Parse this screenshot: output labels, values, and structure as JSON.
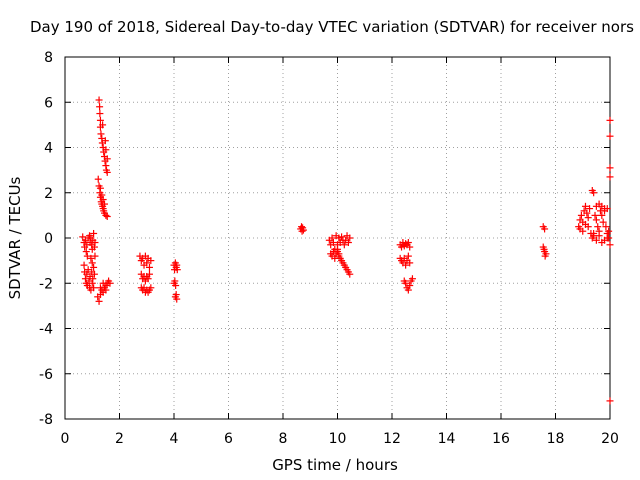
{
  "chart_data": {
    "type": "scatter",
    "title": "Day 190 of 2018, Sidereal Day-to-day VTEC variation (SDTVAR) for receiver nors",
    "xlabel": "GPS time / hours",
    "ylabel": "SDTVAR / TECUs",
    "xlim": [
      0,
      20
    ],
    "ylim": [
      -8,
      8
    ],
    "xticks": [
      0,
      2,
      4,
      6,
      8,
      10,
      12,
      14,
      16,
      18,
      20
    ],
    "yticks": [
      -8,
      -6,
      -4,
      -2,
      0,
      2,
      4,
      6,
      8
    ],
    "grid": true,
    "marker": "plus",
    "color": "#ff0000",
    "series": [
      {
        "name": "nors",
        "points": [
          [
            0.65,
            0.05
          ],
          [
            0.7,
            -0.2
          ],
          [
            0.72,
            -0.4
          ],
          [
            0.75,
            -0.1
          ],
          [
            0.78,
            -0.6
          ],
          [
            0.8,
            -0.3
          ],
          [
            0.82,
            -0.8
          ],
          [
            0.85,
            0.0
          ],
          [
            0.7,
            -1.2
          ],
          [
            0.72,
            -1.5
          ],
          [
            0.75,
            -1.8
          ],
          [
            0.78,
            -2.0
          ],
          [
            0.8,
            -1.6
          ],
          [
            0.82,
            -2.1
          ],
          [
            0.85,
            -1.4
          ],
          [
            0.88,
            -1.9
          ],
          [
            0.9,
            -2.2
          ],
          [
            0.92,
            -1.7
          ],
          [
            0.95,
            -2.3
          ],
          [
            0.98,
            -1.5
          ],
          [
            1.0,
            -2.0
          ],
          [
            1.02,
            -1.8
          ],
          [
            1.05,
            -2.2
          ],
          [
            1.08,
            -1.6
          ],
          [
            0.9,
            0.1
          ],
          [
            0.92,
            -0.2
          ],
          [
            0.95,
            0.0
          ],
          [
            0.98,
            -0.3
          ],
          [
            1.0,
            -0.5
          ],
          [
            1.02,
            -0.1
          ],
          [
            1.05,
            0.2
          ],
          [
            1.08,
            -0.4
          ],
          [
            1.1,
            -0.2
          ],
          [
            0.95,
            -0.9
          ],
          [
            1.0,
            -1.1
          ],
          [
            1.05,
            -1.3
          ],
          [
            1.1,
            -0.8
          ],
          [
            1.2,
            -2.6
          ],
          [
            1.25,
            -2.8
          ],
          [
            1.3,
            -2.5
          ],
          [
            1.35,
            -2.3
          ],
          [
            1.4,
            -2.4
          ],
          [
            1.45,
            -2.2
          ],
          [
            1.5,
            -2.1
          ],
          [
            1.55,
            -2.0
          ],
          [
            1.6,
            -1.9
          ],
          [
            1.65,
            -2.0
          ],
          [
            1.3,
            -2.2
          ],
          [
            1.4,
            -2.0
          ],
          [
            1.5,
            -2.3
          ],
          [
            1.25,
            6.1
          ],
          [
            1.27,
            5.8
          ],
          [
            1.28,
            5.5
          ],
          [
            1.3,
            5.2
          ],
          [
            1.3,
            4.9
          ],
          [
            1.32,
            4.6
          ],
          [
            1.35,
            4.4
          ],
          [
            1.37,
            4.2
          ],
          [
            1.38,
            5.0
          ],
          [
            1.4,
            4.0
          ],
          [
            1.42,
            3.8
          ],
          [
            1.45,
            3.6
          ],
          [
            1.47,
            3.4
          ],
          [
            1.48,
            4.3
          ],
          [
            1.5,
            3.2
          ],
          [
            1.52,
            3.0
          ],
          [
            1.55,
            2.9
          ],
          [
            1.5,
            3.9
          ],
          [
            1.55,
            3.5
          ],
          [
            1.22,
            2.6
          ],
          [
            1.25,
            2.3
          ],
          [
            1.28,
            2.0
          ],
          [
            1.3,
            1.8
          ],
          [
            1.33,
            1.6
          ],
          [
            1.35,
            1.5
          ],
          [
            1.38,
            1.4
          ],
          [
            1.4,
            1.3
          ],
          [
            1.42,
            1.2
          ],
          [
            1.45,
            1.1
          ],
          [
            1.5,
            1.0
          ],
          [
            1.55,
            0.95
          ],
          [
            1.3,
            2.2
          ],
          [
            1.35,
            1.9
          ],
          [
            1.4,
            1.7
          ],
          [
            1.45,
            1.5
          ],
          [
            2.75,
            -0.8
          ],
          [
            2.8,
            -1.0
          ],
          [
            2.85,
            -0.9
          ],
          [
            2.9,
            -1.2
          ],
          [
            2.95,
            -0.8
          ],
          [
            3.0,
            -1.1
          ],
          [
            3.05,
            -0.9
          ],
          [
            3.1,
            -1.3
          ],
          [
            3.15,
            -1.0
          ],
          [
            2.8,
            -1.6
          ],
          [
            2.85,
            -1.8
          ],
          [
            2.9,
            -1.7
          ],
          [
            2.95,
            -1.9
          ],
          [
            3.0,
            -1.7
          ],
          [
            3.05,
            -1.8
          ],
          [
            3.1,
            -1.6
          ],
          [
            2.8,
            -2.2
          ],
          [
            2.85,
            -2.3
          ],
          [
            2.9,
            -2.2
          ],
          [
            2.95,
            -2.4
          ],
          [
            3.0,
            -2.3
          ],
          [
            3.05,
            -2.4
          ],
          [
            3.1,
            -2.3
          ],
          [
            3.15,
            -2.2
          ],
          [
            4.0,
            -1.2
          ],
          [
            4.02,
            -1.4
          ],
          [
            4.05,
            -1.1
          ],
          [
            4.08,
            -1.3
          ],
          [
            4.1,
            -1.2
          ],
          [
            4.12,
            -1.4
          ],
          [
            4.0,
            -2.0
          ],
          [
            4.03,
            -1.9
          ],
          [
            4.06,
            -2.1
          ],
          [
            4.05,
            -2.6
          ],
          [
            4.08,
            -2.5
          ],
          [
            4.1,
            -2.7
          ],
          [
            8.65,
            0.4
          ],
          [
            8.68,
            0.5
          ],
          [
            8.7,
            0.3
          ],
          [
            8.72,
            0.45
          ],
          [
            8.75,
            0.35
          ],
          [
            9.7,
            -0.1
          ],
          [
            9.75,
            -0.3
          ],
          [
            9.8,
            0.0
          ],
          [
            9.85,
            -0.2
          ],
          [
            9.9,
            -0.5
          ],
          [
            9.95,
            0.1
          ],
          [
            10.0,
            -0.3
          ],
          [
            10.05,
            0.0
          ],
          [
            10.1,
            -0.2
          ],
          [
            10.15,
            0.05
          ],
          [
            10.2,
            -0.1
          ],
          [
            10.25,
            -0.3
          ],
          [
            10.3,
            -0.1
          ],
          [
            10.35,
            0.1
          ],
          [
            10.4,
            -0.2
          ],
          [
            10.45,
            0.0
          ],
          [
            9.75,
            -0.7
          ],
          [
            9.8,
            -0.8
          ],
          [
            9.85,
            -0.6
          ],
          [
            9.9,
            -0.9
          ],
          [
            9.95,
            -0.7
          ],
          [
            10.0,
            -0.5
          ],
          [
            10.05,
            -0.7
          ],
          [
            10.0,
            -0.6
          ],
          [
            10.05,
            -0.8
          ],
          [
            10.1,
            -0.9
          ],
          [
            10.15,
            -1.0
          ],
          [
            10.2,
            -1.1
          ],
          [
            10.25,
            -1.2
          ],
          [
            10.3,
            -1.3
          ],
          [
            10.35,
            -1.4
          ],
          [
            10.4,
            -1.5
          ],
          [
            10.45,
            -1.6
          ],
          [
            12.3,
            -0.3
          ],
          [
            12.35,
            -0.4
          ],
          [
            12.4,
            -0.2
          ],
          [
            12.45,
            -0.35
          ],
          [
            12.5,
            -0.25
          ],
          [
            12.55,
            -0.3
          ],
          [
            12.6,
            -0.2
          ],
          [
            12.65,
            -0.4
          ],
          [
            12.3,
            -0.9
          ],
          [
            12.35,
            -1.0
          ],
          [
            12.4,
            -1.1
          ],
          [
            12.45,
            -0.9
          ],
          [
            12.5,
            -1.2
          ],
          [
            12.55,
            -1.0
          ],
          [
            12.6,
            -0.8
          ],
          [
            12.65,
            -1.1
          ],
          [
            12.45,
            -1.9
          ],
          [
            12.5,
            -2.0
          ],
          [
            12.55,
            -2.2
          ],
          [
            12.6,
            -2.3
          ],
          [
            12.65,
            -2.1
          ],
          [
            12.7,
            -1.9
          ],
          [
            12.75,
            -1.8
          ],
          [
            17.55,
            0.5
          ],
          [
            17.6,
            0.4
          ],
          [
            17.55,
            -0.4
          ],
          [
            17.58,
            -0.5
          ],
          [
            17.6,
            -0.6
          ],
          [
            17.62,
            -0.8
          ],
          [
            17.65,
            -0.7
          ],
          [
            18.85,
            0.5
          ],
          [
            18.9,
            0.8
          ],
          [
            18.95,
            1.0
          ],
          [
            19.0,
            0.7
          ],
          [
            19.05,
            1.2
          ],
          [
            19.1,
            1.4
          ],
          [
            19.15,
            1.1
          ],
          [
            19.2,
            0.9
          ],
          [
            19.25,
            1.3
          ],
          [
            18.9,
            0.4
          ],
          [
            19.0,
            0.3
          ],
          [
            19.1,
            0.6
          ],
          [
            19.2,
            0.5
          ],
          [
            19.3,
            0.2
          ],
          [
            19.35,
            0.0
          ],
          [
            19.4,
            0.1
          ],
          [
            19.35,
            2.1
          ],
          [
            19.4,
            2.0
          ],
          [
            19.45,
            1.0
          ],
          [
            19.5,
            0.8
          ],
          [
            19.55,
            0.5
          ],
          [
            19.6,
            0.3
          ],
          [
            19.65,
            1.2
          ],
          [
            19.7,
            1.0
          ],
          [
            19.75,
            0.7
          ],
          [
            19.8,
            1.3
          ],
          [
            19.85,
            0.5
          ],
          [
            19.9,
            0.2
          ],
          [
            19.95,
            0.0
          ],
          [
            19.5,
            1.4
          ],
          [
            19.6,
            1.5
          ],
          [
            19.7,
            1.4
          ],
          [
            19.8,
            1.2
          ],
          [
            19.9,
            1.3
          ],
          [
            19.4,
            0.2
          ],
          [
            19.5,
            -0.1
          ],
          [
            19.6,
            0.1
          ],
          [
            19.7,
            -0.2
          ],
          [
            19.8,
            -0.1
          ],
          [
            19.9,
            0.0
          ],
          [
            19.95,
            0.3
          ],
          [
            20.0,
            5.2
          ],
          [
            20.0,
            4.5
          ],
          [
            20.0,
            3.1
          ],
          [
            20.0,
            2.7
          ],
          [
            20.0,
            -0.3
          ],
          [
            20.0,
            -7.2
          ]
        ]
      }
    ]
  }
}
